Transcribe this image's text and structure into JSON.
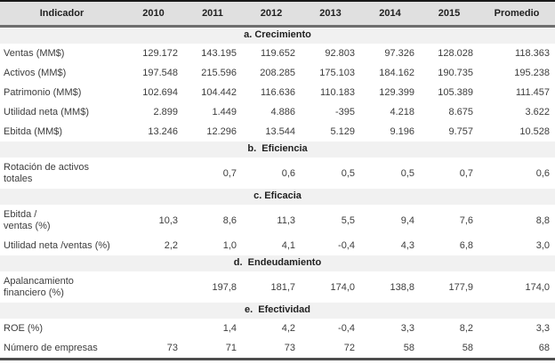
{
  "colors": {
    "header_bg": "#e0e0e0",
    "section_bg": "#f1f1f1",
    "top_border": "#1a1a1a",
    "header_rule": "#6e6e6e",
    "bottom_border": "#4d4d4d",
    "text": "#3d3d3d"
  },
  "table": {
    "columns": [
      "Indicador",
      "2010",
      "2011",
      "2012",
      "2013",
      "2014",
      "2015",
      "Promedio"
    ],
    "sections": [
      {
        "title": "a. Crecimiento",
        "rows": [
          [
            "Ventas (MM$)",
            "129.172",
            "143.195",
            "119.652",
            "92.803",
            "97.326",
            "128.028",
            "118.363"
          ],
          [
            "Activos (MM$)",
            "197.548",
            "215.596",
            "208.285",
            "175.103",
            "184.162",
            "190.735",
            "195.238"
          ],
          [
            "Patrimonio (MM$)",
            "102.694",
            "104.442",
            "116.636",
            "110.183",
            "129.399",
            "105.389",
            "111.457"
          ],
          [
            "Utilidad neta (MM$)",
            "2.899",
            "1.449",
            "4.886",
            "-395",
            "4.218",
            "8.675",
            "3.622"
          ],
          [
            "Ebitda (MM$)",
            "13.246",
            "12.296",
            "13.544",
            "5.129",
            "9.196",
            "9.757",
            "10.528"
          ]
        ]
      },
      {
        "title": "b.  Eficiencia",
        "rows": [
          [
            "Rotación de activos\ntotales",
            "",
            "0,7",
            "0,6",
            "0,5",
            "0,5",
            "0,7",
            "0,6"
          ]
        ]
      },
      {
        "title": "c. Eficacia",
        "rows": [
          [
            "Ebitda /\nventas (%)",
            "10,3",
            "8,6",
            "11,3",
            "5,5",
            "9,4",
            "7,6",
            "8,8"
          ],
          [
            "Utilidad neta /ventas (%)",
            "2,2",
            "1,0",
            "4,1",
            "-0,4",
            "4,3",
            "6,8",
            "3,0"
          ]
        ]
      },
      {
        "title": "d.  Endeudamiento",
        "rows": [
          [
            "Apalancamiento\nfinanciero (%)",
            "",
            "197,8",
            "181,7",
            "174,0",
            "138,8",
            "177,9",
            "174,0"
          ]
        ]
      },
      {
        "title": "e.  Efectividad",
        "rows": [
          [
            "ROE (%)",
            "",
            "1,4",
            "4,2",
            "-0,4",
            "3,3",
            "8,2",
            "3,3"
          ],
          [
            "Número de empresas",
            "73",
            "71",
            "73",
            "72",
            "58",
            "58",
            "68"
          ]
        ]
      }
    ]
  }
}
